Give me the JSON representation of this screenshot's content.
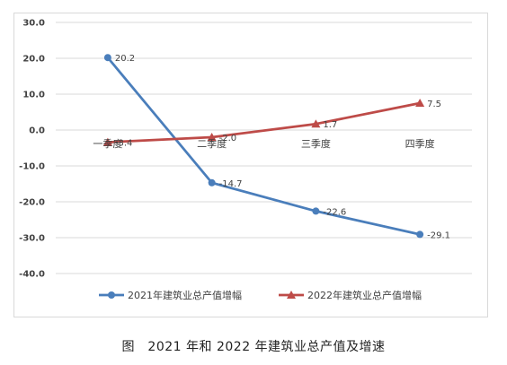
{
  "caption": "图　2021 年和 2022 年建筑业总产值及增速",
  "chart_data": {
    "type": "line",
    "categories": [
      "一季度",
      "二季度",
      "三季度",
      "四季度"
    ],
    "ylim": [
      -40.0,
      30.0
    ],
    "yticks": [
      30.0,
      20.0,
      10.0,
      0.0,
      -10.0,
      -20.0,
      -30.0,
      -40.0
    ],
    "ytick_labels": [
      "30.0",
      "20.0",
      "10.0",
      "0.0",
      "-10.0",
      "-20.0",
      "-30.0",
      "-40.0"
    ],
    "grid": true,
    "legend_position": "bottom",
    "series": [
      {
        "name": "2021年建筑业总产值增幅",
        "values": [
          20.2,
          -14.7,
          -22.6,
          -29.1
        ],
        "labels": [
          "20.2",
          "-14.7",
          "-22.6",
          "-29.1"
        ],
        "color": "#4a7ebb",
        "marker": "circle"
      },
      {
        "name": "2022年建筑业总产值增幅",
        "values": [
          -3.4,
          -2.0,
          1.7,
          7.5
        ],
        "labels": [
          "-3.4",
          "-2.0",
          "1.7",
          "7.5"
        ],
        "color": "#be4b48",
        "marker": "triangle"
      }
    ]
  }
}
